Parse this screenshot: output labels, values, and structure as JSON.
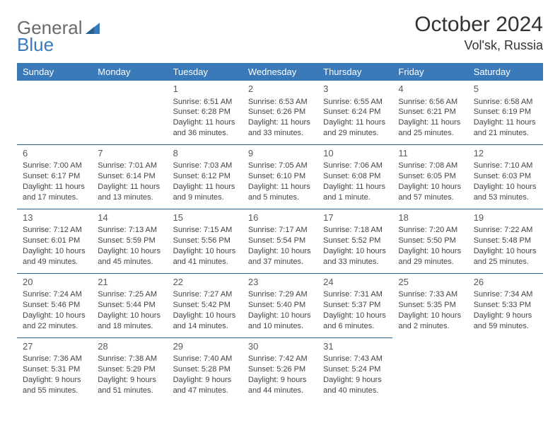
{
  "brand": {
    "part1": "General",
    "part2": "Blue"
  },
  "header": {
    "title": "October 2024",
    "location": "Vol'sk, Russia"
  },
  "colors": {
    "header_bg": "#3a7ab8",
    "header_text": "#ffffff",
    "row_divider": "#2b5f8e",
    "body_text": "#444444",
    "title_text": "#333333",
    "logo_gray": "#6b6b6b",
    "logo_blue": "#3a7ab8"
  },
  "weekdays": [
    "Sunday",
    "Monday",
    "Tuesday",
    "Wednesday",
    "Thursday",
    "Friday",
    "Saturday"
  ],
  "weeks": [
    [
      null,
      null,
      {
        "day": "1",
        "sunrise": "Sunrise: 6:51 AM",
        "sunset": "Sunset: 6:28 PM",
        "daylight": "Daylight: 11 hours and 36 minutes."
      },
      {
        "day": "2",
        "sunrise": "Sunrise: 6:53 AM",
        "sunset": "Sunset: 6:26 PM",
        "daylight": "Daylight: 11 hours and 33 minutes."
      },
      {
        "day": "3",
        "sunrise": "Sunrise: 6:55 AM",
        "sunset": "Sunset: 6:24 PM",
        "daylight": "Daylight: 11 hours and 29 minutes."
      },
      {
        "day": "4",
        "sunrise": "Sunrise: 6:56 AM",
        "sunset": "Sunset: 6:21 PM",
        "daylight": "Daylight: 11 hours and 25 minutes."
      },
      {
        "day": "5",
        "sunrise": "Sunrise: 6:58 AM",
        "sunset": "Sunset: 6:19 PM",
        "daylight": "Daylight: 11 hours and 21 minutes."
      }
    ],
    [
      {
        "day": "6",
        "sunrise": "Sunrise: 7:00 AM",
        "sunset": "Sunset: 6:17 PM",
        "daylight": "Daylight: 11 hours and 17 minutes."
      },
      {
        "day": "7",
        "sunrise": "Sunrise: 7:01 AM",
        "sunset": "Sunset: 6:14 PM",
        "daylight": "Daylight: 11 hours and 13 minutes."
      },
      {
        "day": "8",
        "sunrise": "Sunrise: 7:03 AM",
        "sunset": "Sunset: 6:12 PM",
        "daylight": "Daylight: 11 hours and 9 minutes."
      },
      {
        "day": "9",
        "sunrise": "Sunrise: 7:05 AM",
        "sunset": "Sunset: 6:10 PM",
        "daylight": "Daylight: 11 hours and 5 minutes."
      },
      {
        "day": "10",
        "sunrise": "Sunrise: 7:06 AM",
        "sunset": "Sunset: 6:08 PM",
        "daylight": "Daylight: 11 hours and 1 minute."
      },
      {
        "day": "11",
        "sunrise": "Sunrise: 7:08 AM",
        "sunset": "Sunset: 6:05 PM",
        "daylight": "Daylight: 10 hours and 57 minutes."
      },
      {
        "day": "12",
        "sunrise": "Sunrise: 7:10 AM",
        "sunset": "Sunset: 6:03 PM",
        "daylight": "Daylight: 10 hours and 53 minutes."
      }
    ],
    [
      {
        "day": "13",
        "sunrise": "Sunrise: 7:12 AM",
        "sunset": "Sunset: 6:01 PM",
        "daylight": "Daylight: 10 hours and 49 minutes."
      },
      {
        "day": "14",
        "sunrise": "Sunrise: 7:13 AM",
        "sunset": "Sunset: 5:59 PM",
        "daylight": "Daylight: 10 hours and 45 minutes."
      },
      {
        "day": "15",
        "sunrise": "Sunrise: 7:15 AM",
        "sunset": "Sunset: 5:56 PM",
        "daylight": "Daylight: 10 hours and 41 minutes."
      },
      {
        "day": "16",
        "sunrise": "Sunrise: 7:17 AM",
        "sunset": "Sunset: 5:54 PM",
        "daylight": "Daylight: 10 hours and 37 minutes."
      },
      {
        "day": "17",
        "sunrise": "Sunrise: 7:18 AM",
        "sunset": "Sunset: 5:52 PM",
        "daylight": "Daylight: 10 hours and 33 minutes."
      },
      {
        "day": "18",
        "sunrise": "Sunrise: 7:20 AM",
        "sunset": "Sunset: 5:50 PM",
        "daylight": "Daylight: 10 hours and 29 minutes."
      },
      {
        "day": "19",
        "sunrise": "Sunrise: 7:22 AM",
        "sunset": "Sunset: 5:48 PM",
        "daylight": "Daylight: 10 hours and 25 minutes."
      }
    ],
    [
      {
        "day": "20",
        "sunrise": "Sunrise: 7:24 AM",
        "sunset": "Sunset: 5:46 PM",
        "daylight": "Daylight: 10 hours and 22 minutes."
      },
      {
        "day": "21",
        "sunrise": "Sunrise: 7:25 AM",
        "sunset": "Sunset: 5:44 PM",
        "daylight": "Daylight: 10 hours and 18 minutes."
      },
      {
        "day": "22",
        "sunrise": "Sunrise: 7:27 AM",
        "sunset": "Sunset: 5:42 PM",
        "daylight": "Daylight: 10 hours and 14 minutes."
      },
      {
        "day": "23",
        "sunrise": "Sunrise: 7:29 AM",
        "sunset": "Sunset: 5:40 PM",
        "daylight": "Daylight: 10 hours and 10 minutes."
      },
      {
        "day": "24",
        "sunrise": "Sunrise: 7:31 AM",
        "sunset": "Sunset: 5:37 PM",
        "daylight": "Daylight: 10 hours and 6 minutes."
      },
      {
        "day": "25",
        "sunrise": "Sunrise: 7:33 AM",
        "sunset": "Sunset: 5:35 PM",
        "daylight": "Daylight: 10 hours and 2 minutes."
      },
      {
        "day": "26",
        "sunrise": "Sunrise: 7:34 AM",
        "sunset": "Sunset: 5:33 PM",
        "daylight": "Daylight: 9 hours and 59 minutes."
      }
    ],
    [
      {
        "day": "27",
        "sunrise": "Sunrise: 7:36 AM",
        "sunset": "Sunset: 5:31 PM",
        "daylight": "Daylight: 9 hours and 55 minutes."
      },
      {
        "day": "28",
        "sunrise": "Sunrise: 7:38 AM",
        "sunset": "Sunset: 5:29 PM",
        "daylight": "Daylight: 9 hours and 51 minutes."
      },
      {
        "day": "29",
        "sunrise": "Sunrise: 7:40 AM",
        "sunset": "Sunset: 5:28 PM",
        "daylight": "Daylight: 9 hours and 47 minutes."
      },
      {
        "day": "30",
        "sunrise": "Sunrise: 7:42 AM",
        "sunset": "Sunset: 5:26 PM",
        "daylight": "Daylight: 9 hours and 44 minutes."
      },
      {
        "day": "31",
        "sunrise": "Sunrise: 7:43 AM",
        "sunset": "Sunset: 5:24 PM",
        "daylight": "Daylight: 9 hours and 40 minutes."
      },
      null,
      null
    ]
  ]
}
